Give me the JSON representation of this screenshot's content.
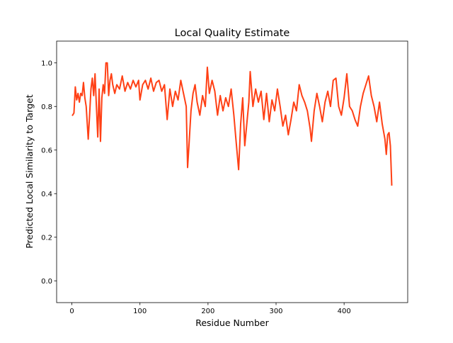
{
  "chart_data": {
    "type": "line",
    "title": "Local Quality Estimate",
    "x_label": "Residue Number",
    "y_label": "Predicted Local Similarity to Target",
    "x": [
      1,
      3,
      5,
      7,
      9,
      11,
      13,
      15,
      17,
      19,
      21,
      24,
      26,
      28,
      30,
      32,
      34,
      36,
      38,
      40,
      42,
      44,
      46,
      48,
      50,
      52,
      54,
      56,
      58,
      60,
      63,
      66,
      70,
      74,
      78,
      82,
      86,
      90,
      94,
      98,
      100,
      104,
      108,
      112,
      116,
      120,
      124,
      128,
      132,
      136,
      140,
      144,
      148,
      152,
      156,
      160,
      164,
      168,
      170,
      172,
      175,
      178,
      181,
      184,
      188,
      192,
      196,
      199,
      202,
      206,
      210,
      214,
      218,
      222,
      226,
      230,
      234,
      238,
      241,
      245,
      248,
      251,
      254,
      257,
      260,
      262,
      266,
      270,
      274,
      278,
      282,
      286,
      290,
      294,
      298,
      302,
      306,
      310,
      314,
      318,
      322,
      326,
      330,
      334,
      338,
      342,
      346,
      350,
      352,
      356,
      360,
      364,
      368,
      372,
      376,
      380,
      384,
      388,
      392,
      396,
      400,
      404,
      408,
      412,
      416,
      420,
      424,
      428,
      432,
      436,
      440,
      444,
      448,
      452,
      456,
      460,
      462,
      464,
      466,
      468,
      470
    ],
    "series": [
      {
        "name": "Local Quality",
        "color": "#ff4015",
        "values": [
          0.76,
          0.77,
          0.89,
          0.83,
          0.86,
          0.82,
          0.86,
          0.85,
          0.91,
          0.84,
          0.8,
          0.65,
          0.76,
          0.88,
          0.93,
          0.85,
          0.95,
          0.8,
          0.66,
          0.88,
          0.64,
          0.84,
          0.9,
          0.86,
          1.0,
          1.0,
          0.85,
          0.92,
          0.95,
          0.9,
          0.86,
          0.9,
          0.88,
          0.94,
          0.87,
          0.91,
          0.88,
          0.92,
          0.89,
          0.92,
          0.83,
          0.9,
          0.92,
          0.88,
          0.93,
          0.87,
          0.91,
          0.92,
          0.87,
          0.9,
          0.74,
          0.88,
          0.8,
          0.87,
          0.83,
          0.92,
          0.86,
          0.8,
          0.52,
          0.62,
          0.78,
          0.86,
          0.9,
          0.82,
          0.76,
          0.85,
          0.8,
          0.98,
          0.86,
          0.92,
          0.87,
          0.76,
          0.85,
          0.78,
          0.84,
          0.8,
          0.88,
          0.76,
          0.65,
          0.51,
          0.72,
          0.84,
          0.62,
          0.72,
          0.82,
          0.96,
          0.8,
          0.88,
          0.82,
          0.87,
          0.74,
          0.86,
          0.73,
          0.83,
          0.78,
          0.88,
          0.8,
          0.71,
          0.76,
          0.67,
          0.74,
          0.82,
          0.78,
          0.9,
          0.85,
          0.82,
          0.78,
          0.7,
          0.64,
          0.78,
          0.86,
          0.8,
          0.73,
          0.82,
          0.87,
          0.8,
          0.92,
          0.93,
          0.8,
          0.76,
          0.84,
          0.95,
          0.8,
          0.78,
          0.74,
          0.71,
          0.8,
          0.86,
          0.9,
          0.94,
          0.85,
          0.8,
          0.73,
          0.82,
          0.72,
          0.65,
          0.58,
          0.67,
          0.68,
          0.62,
          0.44
        ]
      }
    ],
    "xlim": [
      -22.45,
      493.45
    ],
    "ylim": [
      -0.1,
      1.1
    ],
    "xticks": [
      0,
      100,
      200,
      300,
      400
    ],
    "yticks": [
      {
        "value": 0,
        "label": "0.0"
      },
      0.2,
      0.4,
      0.6,
      0.8,
      {
        "value": 1,
        "label": "1.0"
      }
    ],
    "grid": false
  }
}
